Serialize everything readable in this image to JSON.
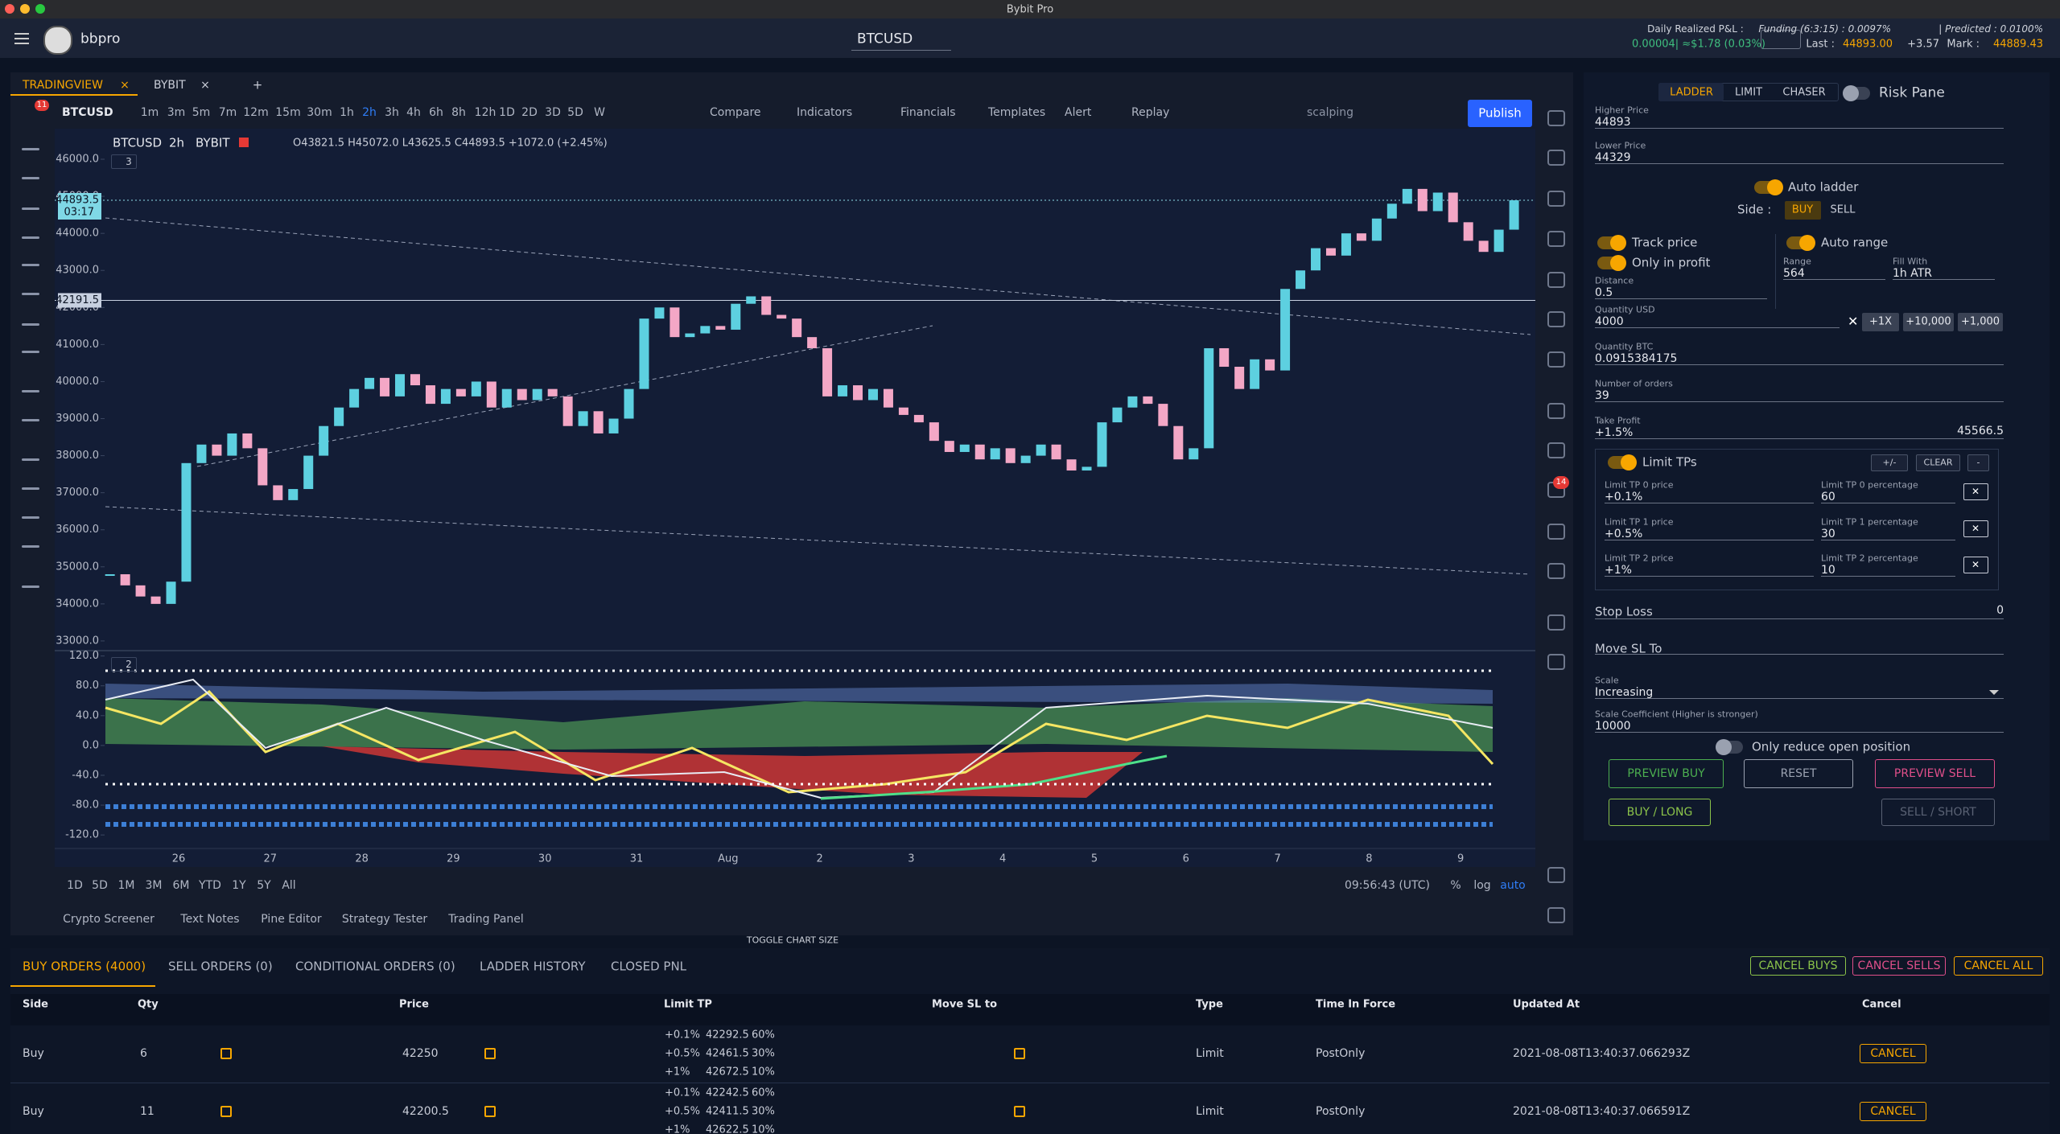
{
  "window_title": "Bybit Pro",
  "header": {
    "user": "bbpro",
    "symbol": "BTCUSD",
    "pnl_label": "Daily Realized P&L :",
    "pnl_value": "0.00004| ≈$1.78 (0.03%)",
    "funding": "Funding (6:3:15) : 0.0097%",
    "predicted": "| Predicted : 0.0100%",
    "last_label": "Last :",
    "last": "44893.00",
    "last_change": "+3.57",
    "mark_label": "Mark :",
    "mark": "44889.43"
  },
  "chart_tabs": {
    "tabs": [
      "TRADINGVIEW",
      "BYBIT"
    ],
    "close": "×",
    "add": "+",
    "badge": "11"
  },
  "toolbar": {
    "symbol": "BTCUSD",
    "intervals": [
      "1m",
      "3m",
      "5m",
      "7m",
      "12m",
      "15m",
      "30m",
      "1h",
      "2h",
      "3h",
      "4h",
      "6h",
      "8h",
      "12h",
      "1D",
      "2D",
      "3D",
      "5D",
      "W"
    ],
    "active_interval": 8,
    "tools": [
      "Compare",
      "Indicators",
      "Financials",
      "Templates",
      "Alert",
      "Replay"
    ],
    "layout": "scalping",
    "publish": "Publish"
  },
  "chart_data": {
    "type": "candlestick",
    "symbol": "BTCUSD",
    "interval": "2h",
    "exchange": "BYBIT",
    "ohlc": "O43821.5 H45072.0 L43625.5 C44893.5 +1072.0 (+2.45%)",
    "pane_label": "3",
    "closes": [
      34800,
      34500,
      34200,
      34000,
      34600,
      37800,
      38300,
      38000,
      38600,
      38200,
      37200,
      36800,
      37100,
      38000,
      38800,
      39300,
      39800,
      40100,
      39600,
      40200,
      39900,
      39400,
      39800,
      39600,
      40000,
      39300,
      39800,
      39500,
      39800,
      39600,
      38800,
      39200,
      38600,
      39000,
      39800,
      41700,
      42000,
      41200,
      41300,
      41500,
      41400,
      42100,
      42300,
      41800,
      41700,
      41200,
      40900,
      39600,
      39900,
      39500,
      39800,
      39300,
      39100,
      38900,
      38400,
      38100,
      38300,
      37900,
      38200,
      37800,
      38000,
      38300,
      37900,
      37600,
      37700,
      38900,
      39300,
      39600,
      39400,
      38800,
      37900,
      38200,
      40900,
      40400,
      39800,
      40600,
      40300,
      42500,
      43000,
      43600,
      43400,
      44000,
      43800,
      44400,
      44800,
      45200,
      44600,
      45100,
      44300,
      43800,
      43500,
      44100,
      44893.5
    ],
    "up_color": "#5dd0e0",
    "down_color": "#f3a7c6",
    "ylim": [
      32760,
      46760
    ],
    "yticks": [
      {
        "value": 46000,
        "label": "46000.0"
      },
      {
        "value": 45000,
        "label": "45000.0"
      },
      {
        "value": 44000,
        "label": "44000.0"
      },
      {
        "value": 43000,
        "label": "43000.0"
      },
      {
        "value": 42000,
        "label": "42000.0"
      },
      {
        "value": 41000,
        "label": "41000.0"
      },
      {
        "value": 40000,
        "label": "40000.0"
      },
      {
        "value": 39000,
        "label": "39000.0"
      },
      {
        "value": 38000,
        "label": "38000.0"
      },
      {
        "value": 37000,
        "label": "37000.0"
      },
      {
        "value": 36000,
        "label": "36000.0"
      },
      {
        "value": 35000,
        "label": "35000.0"
      },
      {
        "value": 34000,
        "label": "34000.0"
      },
      {
        "value": 33000,
        "label": "33000.0"
      }
    ],
    "xtick_labels": [
      "26",
      "27",
      "28",
      "29",
      "30",
      "31",
      "Aug",
      "2",
      "3",
      "4",
      "5",
      "6",
      "7",
      "8",
      "9"
    ],
    "last_price": 44893.5,
    "countdown": "03:17",
    "line_price": 42191.5,
    "indicator": {
      "pane_label": "2",
      "ylim": [
        -136,
        125
      ],
      "yticks": [
        {
          "value": 120,
          "label": "120.0"
        },
        {
          "value": 80,
          "label": "80.0"
        },
        {
          "value": 40,
          "label": "40.0"
        },
        {
          "value": 0,
          "label": "0.0"
        },
        {
          "value": -40,
          "label": "-40.0"
        },
        {
          "value": -80,
          "label": "-80.0"
        },
        {
          "value": -120,
          "label": "-120.0"
        }
      ]
    }
  },
  "range_bar": {
    "ranges": [
      "1D",
      "5D",
      "1M",
      "3M",
      "6M",
      "YTD",
      "1Y",
      "5Y",
      "All"
    ],
    "clock": "09:56:43 (UTC)",
    "percent": "%",
    "log": "log",
    "auto": "auto"
  },
  "bottom_tabs": [
    "Crypto Screener",
    "Text Notes",
    "Pine Editor",
    "Strategy Tester",
    "Trading Panel"
  ],
  "toggle_chart_size": "TOGGLE CHART SIZE",
  "right_toolbar_badge": "14",
  "ladder": {
    "tabs": [
      "LADDER",
      "LIMIT",
      "CHASER"
    ],
    "risk_pane": "Risk Pane",
    "higher_price_label": "Higher Price",
    "higher_price": "44893",
    "lower_price_label": "Lower Price",
    "lower_price": "44329",
    "auto_ladder": "Auto ladder",
    "side_label": "Side :",
    "buy": "BUY",
    "sell": "SELL",
    "track_price": "Track price",
    "only_in_profit": "Only in profit",
    "auto_range": "Auto range",
    "distance_label": "Distance",
    "distance": "0.5",
    "range_label": "Range",
    "range": "564",
    "fill_label": "Fill With",
    "fill": "1h ATR",
    "qty_usd_label": "Quantity USD",
    "qty_usd": "4000",
    "clear_x": "✕",
    "qty_buttons": [
      "+1X",
      "+10,000",
      "+1,000"
    ],
    "qty_btc_label": "Quantity BTC",
    "qty_btc": "0.0915384175",
    "orders_label": "Number of orders",
    "orders": "39",
    "tp_label": "Take Profit",
    "tp": "+1.5%",
    "tp_price": "45566.5",
    "limit_tps": "Limit TPs",
    "tp_buttons": [
      "+/-",
      "CLEAR",
      "-"
    ],
    "tp_rows": [
      {
        "price_label": "Limit TP 0 price",
        "price": "+0.1%",
        "pct_label": "Limit TP 0 percentage",
        "pct": "60"
      },
      {
        "price_label": "Limit TP 1 price",
        "price": "+0.5%",
        "pct_label": "Limit TP 1 percentage",
        "pct": "30"
      },
      {
        "price_label": "Limit TP 2 price",
        "price": "+1%",
        "pct_label": "Limit TP 2 percentage",
        "pct": "10"
      }
    ],
    "stop_loss": "Stop Loss",
    "stop_loss_value": "0",
    "move_sl": "Move SL To",
    "scale_label": "Scale",
    "scale": "Increasing",
    "coef_label": "Scale Coefficient (Higher is stronger)",
    "coef": "10000",
    "reduce_only": "Only reduce open position",
    "preview_buy": "PREVIEW BUY",
    "reset": "RESET",
    "preview_sell": "PREVIEW SELL",
    "buy_long": "BUY / LONG",
    "sell_short": "SELL / SHORT"
  },
  "orders": {
    "tabs": [
      "BUY ORDERS (4000)",
      "SELL ORDERS (0)",
      "CONDITIONAL ORDERS (0)",
      "LADDER HISTORY",
      "CLOSED PNL"
    ],
    "actions": [
      "CANCEL BUYS",
      "CANCEL SELLS",
      "CANCEL ALL"
    ],
    "columns": [
      "Side",
      "Qty",
      "Price",
      "Limit TP",
      "Move SL to",
      "Type",
      "Time In Force",
      "Updated At",
      "Cancel"
    ],
    "rows": [
      {
        "side": "Buy",
        "qty": "6",
        "price": "42250",
        "limit_tp": [
          [
            "+0.1%",
            "42292.5",
            "60%"
          ],
          [
            "+0.5%",
            "42461.5",
            "30%"
          ],
          [
            "+1%",
            "42672.5",
            "10%"
          ]
        ],
        "type": "Limit",
        "tif": "PostOnly",
        "updated": "2021-08-08T13:40:37.066293Z",
        "cancel": "CANCEL"
      },
      {
        "side": "Buy",
        "qty": "11",
        "price": "42200.5",
        "limit_tp": [
          [
            "+0.1%",
            "42242.5",
            "60%"
          ],
          [
            "+0.5%",
            "42411.5",
            "30%"
          ],
          [
            "+1%",
            "42622.5",
            "10%"
          ]
        ],
        "type": "Limit",
        "tif": "PostOnly",
        "updated": "2021-08-08T13:40:37.066591Z",
        "cancel": "CANCEL"
      }
    ]
  }
}
